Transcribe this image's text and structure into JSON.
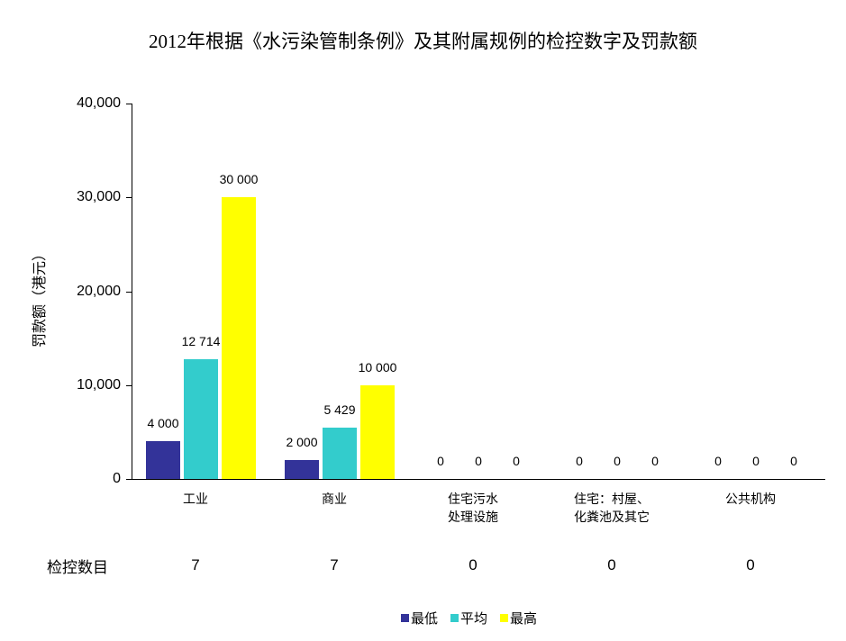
{
  "chart_data": {
    "type": "bar",
    "title": "2012年根据《水污染管制条例》及其附属规例的检控数字及罚款额",
    "xlabel": "",
    "ylabel": "罚款额（港元）",
    "ylim": [
      0,
      40000
    ],
    "yticks": [
      "0",
      "10,000",
      "20,000",
      "30,000",
      "40,000"
    ],
    "grid": false,
    "legend_position": "bottom",
    "categories": [
      "工业",
      "商业",
      "住宅污水处理设施",
      "住宅：村屋、化粪池及其它",
      "公共机构"
    ],
    "category_lines": [
      [
        "工业"
      ],
      [
        "商业"
      ],
      [
        "住宅污水",
        "处理设施"
      ],
      [
        "住宅：村屋、",
        "化粪池及其它"
      ],
      [
        "公共机构"
      ]
    ],
    "series": [
      {
        "name": "最低",
        "color": "#333399",
        "values": [
          4000,
          2000,
          0,
          0,
          0
        ],
        "labels": [
          "4 000",
          "2 000",
          "0",
          "0",
          "0"
        ]
      },
      {
        "name": "平均",
        "color": "#33CCCC",
        "values": [
          12714,
          5429,
          0,
          0,
          0
        ],
        "labels": [
          "12 714",
          "5 429",
          "0",
          "0",
          "0"
        ]
      },
      {
        "name": "最高",
        "color": "#FFFF00",
        "values": [
          30000,
          10000,
          0,
          0,
          0
        ],
        "labels": [
          "30 000",
          "10 000",
          "0",
          "0",
          "0"
        ]
      }
    ],
    "table": {
      "label": "检控数目",
      "values": [
        "7",
        "7",
        "0",
        "0",
        "0"
      ]
    }
  }
}
